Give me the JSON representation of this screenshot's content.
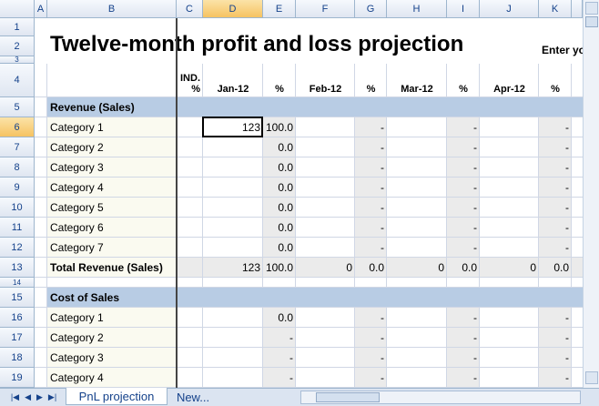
{
  "columns": [
    "A",
    "B",
    "C",
    "D",
    "E",
    "F",
    "G",
    "H",
    "I",
    "J",
    "K"
  ],
  "row_numbers": [
    1,
    2,
    3,
    4,
    5,
    6,
    7,
    8,
    9,
    10,
    11,
    12,
    13,
    14,
    15,
    16,
    17,
    18,
    19
  ],
  "cells": {
    "B2": "Twelve-month profit and loss projection",
    "K2": "Enter yo",
    "C4": "IND. %",
    "D4": "Jan-12",
    "E4": "%",
    "F4": "Feb-12",
    "G4": "%",
    "H4": "Mar-12",
    "I4": "%",
    "J4": "Apr-12",
    "K4": "%",
    "B5": "Revenue (Sales)",
    "B6": "Category 1",
    "D6": "123",
    "E6": "100.0",
    "G6": "-",
    "I6": "-",
    "K6": "-",
    "B7": "Category 2",
    "E7": "0.0",
    "G7": "-",
    "I7": "-",
    "K7": "-",
    "B8": "Category 3",
    "E8": "0.0",
    "G8": "-",
    "I8": "-",
    "K8": "-",
    "B9": "Category 4",
    "E9": "0.0",
    "G9": "-",
    "I9": "-",
    "K9": "-",
    "B10": "Category 5",
    "E10": "0.0",
    "G10": "-",
    "I10": "-",
    "K10": "-",
    "B11": "Category 6",
    "E11": "0.0",
    "G11": "-",
    "I11": "-",
    "K11": "-",
    "B12": "Category 7",
    "E12": "0.0",
    "G12": "-",
    "I12": "-",
    "K12": "-",
    "B13": "Total Revenue (Sales)",
    "D13": "123",
    "E13": "100.0",
    "F13": "0",
    "G13": "0.0",
    "H13": "0",
    "I13": "0.0",
    "J13": "0",
    "K13": "0.0",
    "B15": "Cost of Sales",
    "B16": "Category 1",
    "E16": "0.0",
    "G16": "-",
    "I16": "-",
    "K16": "-",
    "B17": "Category 2",
    "E17": "-",
    "G17": "-",
    "I17": "-",
    "K17": "-",
    "B18": "Category 3",
    "E18": "-",
    "G18": "-",
    "I18": "-",
    "K18": "-",
    "B19": "Category 4",
    "E19": "-",
    "G19": "-",
    "I19": "-",
    "K19": "-"
  },
  "tabs": [
    "PnL projection",
    "New..."
  ]
}
